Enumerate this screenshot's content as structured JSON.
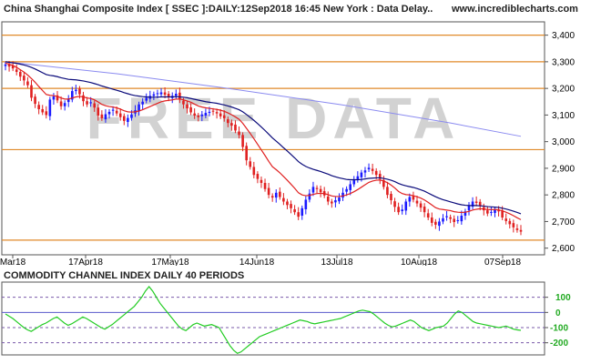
{
  "header": {
    "title": "China Shanghai Composite Index [ SSEC ]:DAILY:12Sep2018 16:45 New York : Data Delay..",
    "site": "www.incrediblecharts.com"
  },
  "watermark": "FREE DATA",
  "colors": {
    "up_candle": "#1a1aff",
    "down_candle": "#e02020",
    "ema_fast": "#e02020",
    "ema_slow": "#0a0a7a",
    "ma_long": "#8a8af0",
    "hline": "#e08a2a",
    "cci_line": "#22cc22",
    "cci_axis_labels": "#22aa22"
  },
  "chart_data": [
    {
      "type": "candlestick",
      "title": "China Shanghai Composite Index [ SSEC ]:DAILY:12Sep2018 16:45 New York : Data Delay..",
      "x_tick_labels": [
        "Mar18",
        "17Apr18",
        "17May18",
        "14Jun18",
        "13Jul18",
        "10Aug18",
        "07Sep18"
      ],
      "y_tick_labels": [
        "3,400",
        "3,300",
        "3,200",
        "3,100",
        "3,000",
        "2,900",
        "2,800",
        "2,700",
        "2,600"
      ],
      "ylim": [
        2575,
        3450
      ],
      "horizontal_lines": [
        3400,
        3300,
        3200,
        2970,
        2630
      ],
      "grid": false,
      "closes": [
        3290,
        3282,
        3275,
        3262,
        3244,
        3230,
        3212,
        3165,
        3142,
        3122,
        3110,
        3100,
        3158,
        3170,
        3155,
        3133,
        3145,
        3162,
        3190,
        3195,
        3178,
        3152,
        3140,
        3148,
        3128,
        3098,
        3088,
        3103,
        3112,
        3120,
        3106,
        3092,
        3078,
        3089,
        3102,
        3118,
        3140,
        3150,
        3165,
        3172,
        3178,
        3182,
        3185,
        3176,
        3168,
        3172,
        3180,
        3158,
        3140,
        3125,
        3110,
        3098,
        3092,
        3102,
        3108,
        3112,
        3115,
        3106,
        3095,
        3088,
        3070,
        3060,
        3042,
        3025,
        2980,
        2930,
        2905,
        2875,
        2860,
        2845,
        2822,
        2800,
        2790,
        2808,
        2792,
        2775,
        2762,
        2750,
        2735,
        2718,
        2750,
        2782,
        2805,
        2830,
        2822,
        2810,
        2798,
        2775,
        2768,
        2780,
        2790,
        2808,
        2822,
        2840,
        2855,
        2870,
        2884,
        2892,
        2902,
        2890,
        2875,
        2860,
        2830,
        2800,
        2780,
        2755,
        2735,
        2745,
        2775,
        2792,
        2782,
        2768,
        2752,
        2735,
        2715,
        2695,
        2688,
        2700,
        2712,
        2720,
        2710,
        2698,
        2705,
        2722,
        2738,
        2760,
        2775,
        2770,
        2758,
        2742,
        2730,
        2736,
        2745,
        2738,
        2715,
        2702,
        2690,
        2678,
        2668,
        2662
      ],
      "ema_fast": [
        3295,
        3291,
        3286,
        3279,
        3270,
        3261,
        3250,
        3237,
        3223,
        3207,
        3192,
        3177,
        3174,
        3173,
        3170,
        3164,
        3160,
        3160,
        3164,
        3168,
        3170,
        3168,
        3164,
        3162,
        3157,
        3149,
        3140,
        3135,
        3132,
        3130,
        3127,
        3122,
        3116,
        3112,
        3111,
        3112,
        3115,
        3120,
        3126,
        3132,
        3138,
        3144,
        3150,
        3153,
        3155,
        3157,
        3160,
        3160,
        3157,
        3153,
        3148,
        3141,
        3134,
        3130,
        3127,
        3125,
        3123,
        3121,
        3118,
        3114,
        3108,
        3101,
        3093,
        3084,
        3069,
        3050,
        3031,
        3011,
        2990,
        2969,
        2948,
        2926,
        2906,
        2895,
        2883,
        2869,
        2855,
        2840,
        2825,
        2808,
        2800,
        2797,
        2798,
        2802,
        2805,
        2806,
        2805,
        2801,
        2796,
        2794,
        2794,
        2796,
        2800,
        2805,
        2812,
        2820,
        2829,
        2838,
        2847,
        2852,
        2855,
        2856,
        2852,
        2846,
        2837,
        2826,
        2813,
        2805,
        2801,
        2800,
        2797,
        2793,
        2788,
        2781,
        2772,
        2762,
        2752,
        2747,
        2745,
        2743,
        2741,
        2737,
        2735,
        2734,
        2735,
        2738,
        2743,
        2746,
        2748,
        2747,
        2745,
        2745,
        2745,
        2744,
        2740,
        2735,
        2729,
        2722,
        2714,
        2707
      ],
      "ema_slow": [
        3300,
        3298,
        3296,
        3294,
        3291,
        3288,
        3284,
        3279,
        3273,
        3266,
        3259,
        3252,
        3249,
        3247,
        3244,
        3240,
        3237,
        3234,
        3233,
        3232,
        3230,
        3228,
        3225,
        3222,
        3218,
        3214,
        3209,
        3205,
        3201,
        3197,
        3193,
        3189,
        3184,
        3180,
        3176,
        3173,
        3171,
        3169,
        3168,
        3167,
        3167,
        3167,
        3168,
        3168,
        3168,
        3168,
        3169,
        3168,
        3167,
        3165,
        3162,
        3159,
        3156,
        3153,
        3150,
        3148,
        3146,
        3144,
        3141,
        3138,
        3134,
        3130,
        3125,
        3120,
        3112,
        3102,
        3091,
        3080,
        3068,
        3055,
        3042,
        3028,
        3014,
        3002,
        2990,
        2977,
        2965,
        2952,
        2939,
        2925,
        2915,
        2907,
        2901,
        2896,
        2892,
        2888,
        2883,
        2878,
        2872,
        2868,
        2864,
        2861,
        2858,
        2857,
        2857,
        2857,
        2858,
        2860,
        2862,
        2863,
        2864,
        2864,
        2862,
        2859,
        2855,
        2850,
        2843,
        2838,
        2834,
        2831,
        2828,
        2824,
        2819,
        2814,
        2807,
        2800,
        2793,
        2787,
        2782,
        2778,
        2774,
        2770,
        2766,
        2763,
        2761,
        2760,
        2760,
        2760,
        2759,
        2758,
        2756,
        2755,
        2754,
        2753,
        2750,
        2747,
        2743,
        2739,
        2734,
        2729
      ],
      "ma_long": [
        {
          "i": 0,
          "v": 3300
        },
        {
          "i": 30,
          "v": 3255
        },
        {
          "i": 60,
          "v": 3200
        },
        {
          "i": 90,
          "v": 3140
        },
        {
          "i": 120,
          "v": 3070
        },
        {
          "i": 139,
          "v": 3020
        }
      ]
    },
    {
      "type": "line",
      "title": "COMMODITY CHANNEL INDEX DAILY 40 PERIODS",
      "y_tick_labels": [
        "100",
        "0",
        "-100",
        "-200"
      ],
      "ylim": [
        -280,
        200
      ],
      "reference_lines": [
        100,
        0,
        -100,
        -200
      ],
      "series": [
        {
          "values": [
            -10,
            -25,
            -40,
            -60,
            -80,
            -100,
            -115,
            -125,
            -110,
            -95,
            -80,
            -70,
            -55,
            -40,
            -30,
            -50,
            -70,
            -85,
            -75,
            -60,
            -45,
            -30,
            -40,
            -55,
            -70,
            -85,
            -100,
            -110,
            -95,
            -80,
            -60,
            -40,
            -20,
            0,
            20,
            40,
            70,
            100,
            140,
            170,
            140,
            100,
            60,
            30,
            0,
            -30,
            -60,
            -90,
            -110,
            -120,
            -100,
            -80,
            -70,
            -80,
            -90,
            -85,
            -80,
            -90,
            -100,
            -140,
            -180,
            -220,
            -250,
            -270,
            -260,
            -240,
            -220,
            -200,
            -180,
            -160,
            -150,
            -140,
            -130,
            -120,
            -110,
            -100,
            -90,
            -80,
            -70,
            -60,
            -50,
            -55,
            -60,
            -70,
            -75,
            -70,
            -65,
            -60,
            -55,
            -50,
            -45,
            -40,
            -30,
            -20,
            -10,
            0,
            10,
            15,
            10,
            5,
            -10,
            -30,
            -50,
            -70,
            -85,
            -95,
            -90,
            -80,
            -70,
            -60,
            -50,
            -60,
            -80,
            -100,
            -110,
            -120,
            -110,
            -100,
            -95,
            -90,
            -70,
            -40,
            -10,
            10,
            0,
            -20,
            -40,
            -60,
            -70,
            -75,
            -80,
            -85,
            -90,
            -95,
            -100,
            -95,
            -90,
            -100,
            -110,
            -115,
            -118
          ]
        }
      ]
    }
  ]
}
